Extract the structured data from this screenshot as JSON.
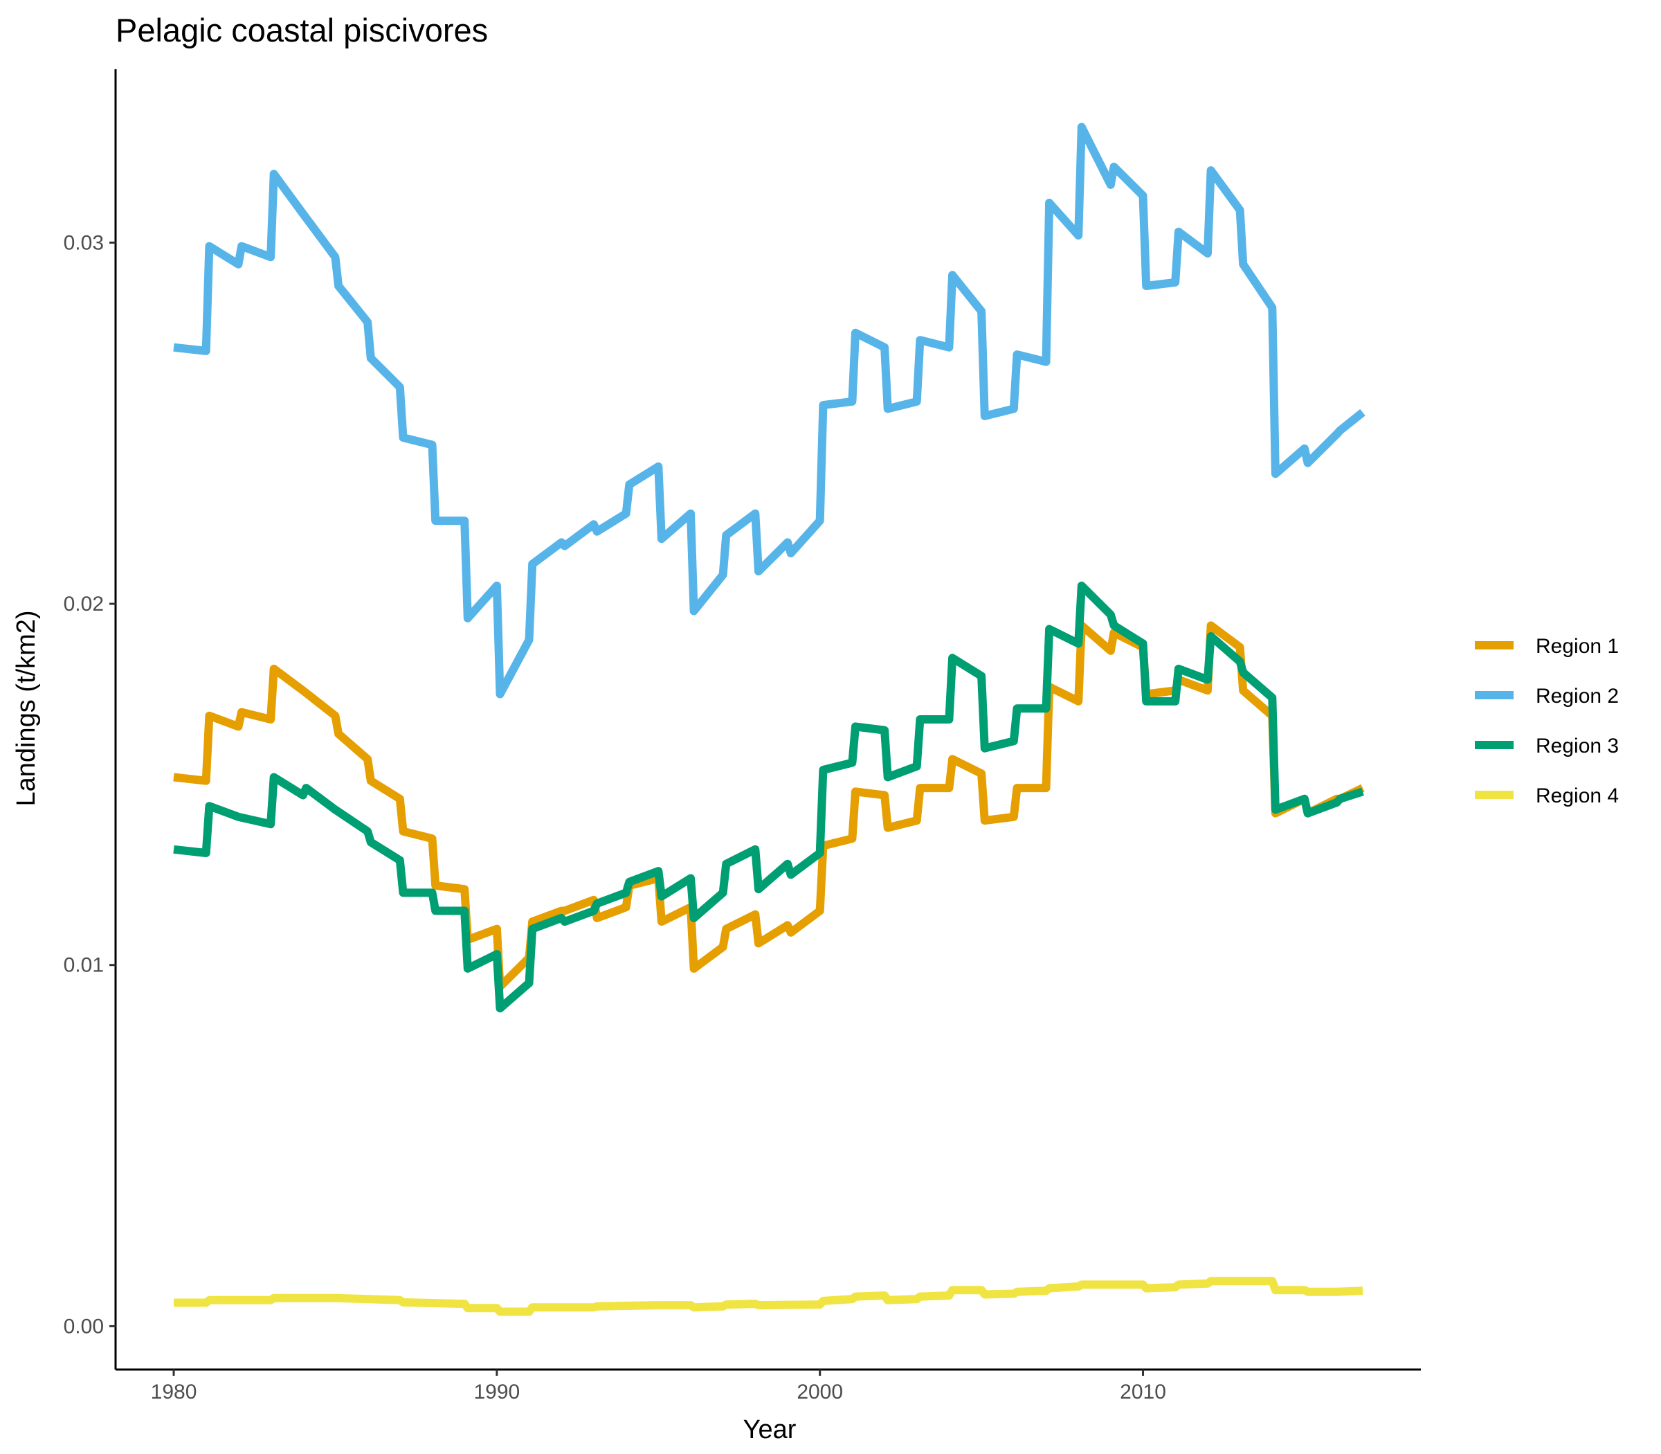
{
  "chart_data": {
    "type": "line",
    "title": "Pelagic coastal piscivores",
    "xlabel": "Year",
    "ylabel": "Landings (t/km2)",
    "xlim": [
      1978.2,
      2018.6
    ],
    "ylim": [
      -0.0012,
      0.0348
    ],
    "x_ticks": [
      1980,
      1990,
      2000,
      2010
    ],
    "y_ticks": [
      0.0,
      0.01,
      0.02,
      0.03
    ],
    "x_tick_labels": [
      "1980",
      "1990",
      "2000",
      "2010"
    ],
    "y_tick_labels": [
      "0.00",
      "0.01",
      "0.02",
      "0.03"
    ],
    "legend_position": "right",
    "grid": false,
    "series": [
      {
        "name": "Region 1",
        "color": "#E69F00",
        "points": [
          [
            1980.0,
            0.0152
          ],
          [
            1981.0,
            0.0151
          ],
          [
            1981.1,
            0.0169
          ],
          [
            1982.0,
            0.0166
          ],
          [
            1982.1,
            0.017
          ],
          [
            1983.0,
            0.0168
          ],
          [
            1983.1,
            0.0182
          ],
          [
            1984.0,
            0.0176
          ],
          [
            1985.0,
            0.0169
          ],
          [
            1985.1,
            0.0164
          ],
          [
            1986.0,
            0.0157
          ],
          [
            1986.1,
            0.0151
          ],
          [
            1987.0,
            0.0146
          ],
          [
            1987.1,
            0.0137
          ],
          [
            1988.0,
            0.0135
          ],
          [
            1988.1,
            0.0122
          ],
          [
            1989.0,
            0.0121
          ],
          [
            1989.1,
            0.0107
          ],
          [
            1990.0,
            0.011
          ],
          [
            1990.1,
            0.0094
          ],
          [
            1991.0,
            0.0102
          ],
          [
            1991.1,
            0.0112
          ],
          [
            1992.0,
            0.0115
          ],
          [
            1992.1,
            0.0115
          ],
          [
            1993.0,
            0.0118
          ],
          [
            1993.1,
            0.0113
          ],
          [
            1994.0,
            0.0116
          ],
          [
            1994.1,
            0.0122
          ],
          [
            1995.0,
            0.0124
          ],
          [
            1995.1,
            0.0112
          ],
          [
            1996.0,
            0.0116
          ],
          [
            1996.1,
            0.0099
          ],
          [
            1997.0,
            0.0105
          ],
          [
            1997.1,
            0.011
          ],
          [
            1998.0,
            0.0114
          ],
          [
            1998.1,
            0.0106
          ],
          [
            1999.0,
            0.0111
          ],
          [
            1999.1,
            0.0109
          ],
          [
            2000.0,
            0.0115
          ],
          [
            2000.1,
            0.0133
          ],
          [
            2001.0,
            0.0135
          ],
          [
            2001.1,
            0.0148
          ],
          [
            2002.0,
            0.0147
          ],
          [
            2002.1,
            0.0138
          ],
          [
            2003.0,
            0.014
          ],
          [
            2003.1,
            0.0149
          ],
          [
            2004.0,
            0.0149
          ],
          [
            2004.1,
            0.0157
          ],
          [
            2005.0,
            0.0153
          ],
          [
            2005.1,
            0.014
          ],
          [
            2006.0,
            0.0141
          ],
          [
            2006.1,
            0.0149
          ],
          [
            2007.0,
            0.0149
          ],
          [
            2007.1,
            0.0177
          ],
          [
            2008.0,
            0.0173
          ],
          [
            2008.1,
            0.0194
          ],
          [
            2009.0,
            0.0187
          ],
          [
            2009.1,
            0.0192
          ],
          [
            2010.0,
            0.0188
          ],
          [
            2010.1,
            0.0175
          ],
          [
            2011.0,
            0.0176
          ],
          [
            2011.1,
            0.0179
          ],
          [
            2012.0,
            0.0176
          ],
          [
            2012.1,
            0.0194
          ],
          [
            2013.0,
            0.0188
          ],
          [
            2013.1,
            0.0176
          ],
          [
            2014.0,
            0.0169
          ],
          [
            2014.1,
            0.0142
          ],
          [
            2015.0,
            0.0146
          ],
          [
            2015.1,
            0.0142
          ],
          [
            2016.0,
            0.0146
          ],
          [
            2016.1,
            0.0146
          ],
          [
            2016.8,
            0.0149
          ]
        ]
      },
      {
        "name": "Region 2",
        "color": "#56B4E9",
        "points": [
          [
            1980.0,
            0.0271
          ],
          [
            1981.0,
            0.027
          ],
          [
            1981.1,
            0.0299
          ],
          [
            1982.0,
            0.0294
          ],
          [
            1982.1,
            0.0299
          ],
          [
            1983.0,
            0.0296
          ],
          [
            1983.1,
            0.0319
          ],
          [
            1984.0,
            0.0308
          ],
          [
            1985.0,
            0.0296
          ],
          [
            1985.1,
            0.0288
          ],
          [
            1986.0,
            0.0278
          ],
          [
            1986.1,
            0.0268
          ],
          [
            1987.0,
            0.026
          ],
          [
            1987.1,
            0.0246
          ],
          [
            1988.0,
            0.0244
          ],
          [
            1988.1,
            0.0223
          ],
          [
            1989.0,
            0.0223
          ],
          [
            1989.1,
            0.0196
          ],
          [
            1990.0,
            0.0205
          ],
          [
            1990.1,
            0.0175
          ],
          [
            1991.0,
            0.019
          ],
          [
            1991.1,
            0.0211
          ],
          [
            1992.0,
            0.0217
          ],
          [
            1992.1,
            0.0216
          ],
          [
            1993.0,
            0.0222
          ],
          [
            1993.1,
            0.022
          ],
          [
            1994.0,
            0.0225
          ],
          [
            1994.1,
            0.0233
          ],
          [
            1995.0,
            0.0238
          ],
          [
            1995.1,
            0.0218
          ],
          [
            1996.0,
            0.0225
          ],
          [
            1996.1,
            0.0198
          ],
          [
            1997.0,
            0.0208
          ],
          [
            1997.1,
            0.0219
          ],
          [
            1998.0,
            0.0225
          ],
          [
            1998.1,
            0.0209
          ],
          [
            1999.0,
            0.0217
          ],
          [
            1999.1,
            0.0214
          ],
          [
            2000.0,
            0.0223
          ],
          [
            2000.1,
            0.0255
          ],
          [
            2001.0,
            0.0256
          ],
          [
            2001.1,
            0.0275
          ],
          [
            2002.0,
            0.0271
          ],
          [
            2002.1,
            0.0254
          ],
          [
            2003.0,
            0.0256
          ],
          [
            2003.1,
            0.0273
          ],
          [
            2004.0,
            0.0271
          ],
          [
            2004.1,
            0.0291
          ],
          [
            2005.0,
            0.0281
          ],
          [
            2005.1,
            0.0252
          ],
          [
            2006.0,
            0.0254
          ],
          [
            2006.1,
            0.0269
          ],
          [
            2007.0,
            0.0267
          ],
          [
            2007.1,
            0.0311
          ],
          [
            2008.0,
            0.0302
          ],
          [
            2008.1,
            0.0332
          ],
          [
            2009.0,
            0.0316
          ],
          [
            2009.1,
            0.0321
          ],
          [
            2010.0,
            0.0313
          ],
          [
            2010.1,
            0.0288
          ],
          [
            2011.0,
            0.0289
          ],
          [
            2011.1,
            0.0303
          ],
          [
            2012.0,
            0.0297
          ],
          [
            2012.1,
            0.032
          ],
          [
            2013.0,
            0.0309
          ],
          [
            2013.1,
            0.0294
          ],
          [
            2014.0,
            0.0282
          ],
          [
            2014.1,
            0.0236
          ],
          [
            2015.0,
            0.0243
          ],
          [
            2015.1,
            0.0239
          ],
          [
            2016.0,
            0.0247
          ],
          [
            2016.1,
            0.0248
          ],
          [
            2016.8,
            0.0253
          ]
        ]
      },
      {
        "name": "Region 3",
        "color": "#009E73",
        "points": [
          [
            1980.0,
            0.0132
          ],
          [
            1981.0,
            0.0131
          ],
          [
            1981.1,
            0.0144
          ],
          [
            1982.0,
            0.0141
          ],
          [
            1983.0,
            0.0139
          ],
          [
            1983.1,
            0.0152
          ],
          [
            1984.0,
            0.0147
          ],
          [
            1984.1,
            0.0149
          ],
          [
            1985.0,
            0.0143
          ],
          [
            1986.0,
            0.0137
          ],
          [
            1986.1,
            0.0134
          ],
          [
            1987.0,
            0.0129
          ],
          [
            1987.1,
            0.012
          ],
          [
            1988.0,
            0.012
          ],
          [
            1988.1,
            0.0115
          ],
          [
            1989.0,
            0.0115
          ],
          [
            1989.1,
            0.0099
          ],
          [
            1990.0,
            0.0103
          ],
          [
            1990.1,
            0.0088
          ],
          [
            1991.0,
            0.0095
          ],
          [
            1991.1,
            0.011
          ],
          [
            1992.0,
            0.0113
          ],
          [
            1992.1,
            0.0112
          ],
          [
            1993.0,
            0.0115
          ],
          [
            1993.1,
            0.0117
          ],
          [
            1994.0,
            0.012
          ],
          [
            1994.1,
            0.0123
          ],
          [
            1995.0,
            0.0126
          ],
          [
            1995.1,
            0.0119
          ],
          [
            1996.0,
            0.0124
          ],
          [
            1996.1,
            0.0113
          ],
          [
            1997.0,
            0.012
          ],
          [
            1997.1,
            0.0128
          ],
          [
            1998.0,
            0.0132
          ],
          [
            1998.1,
            0.0121
          ],
          [
            1999.0,
            0.0128
          ],
          [
            1999.1,
            0.0125
          ],
          [
            2000.0,
            0.0131
          ],
          [
            2000.1,
            0.0154
          ],
          [
            2001.0,
            0.0156
          ],
          [
            2001.1,
            0.0166
          ],
          [
            2002.0,
            0.0165
          ],
          [
            2002.1,
            0.0152
          ],
          [
            2003.0,
            0.0155
          ],
          [
            2003.1,
            0.0168
          ],
          [
            2004.0,
            0.0168
          ],
          [
            2004.1,
            0.0185
          ],
          [
            2005.0,
            0.018
          ],
          [
            2005.1,
            0.016
          ],
          [
            2006.0,
            0.0162
          ],
          [
            2006.1,
            0.0171
          ],
          [
            2007.0,
            0.0171
          ],
          [
            2007.1,
            0.0193
          ],
          [
            2008.0,
            0.0189
          ],
          [
            2008.1,
            0.0205
          ],
          [
            2009.0,
            0.0197
          ],
          [
            2009.1,
            0.0194
          ],
          [
            2010.0,
            0.0189
          ],
          [
            2010.1,
            0.0173
          ],
          [
            2011.0,
            0.0173
          ],
          [
            2011.1,
            0.0182
          ],
          [
            2012.0,
            0.0179
          ],
          [
            2012.1,
            0.0191
          ],
          [
            2013.0,
            0.0184
          ],
          [
            2013.1,
            0.0181
          ],
          [
            2014.0,
            0.0174
          ],
          [
            2014.1,
            0.0143
          ],
          [
            2015.0,
            0.0146
          ],
          [
            2015.1,
            0.0142
          ],
          [
            2016.0,
            0.0145
          ],
          [
            2016.1,
            0.0146
          ],
          [
            2016.8,
            0.0148
          ]
        ]
      },
      {
        "name": "Region 4",
        "color": "#F0E442",
        "points": [
          [
            1980.0,
            0.00065
          ],
          [
            1981.0,
            0.00065
          ],
          [
            1981.1,
            0.00072
          ],
          [
            1983.0,
            0.00072
          ],
          [
            1983.1,
            0.00078
          ],
          [
            1985.0,
            0.00078
          ],
          [
            1986.0,
            0.00075
          ],
          [
            1987.0,
            0.00072
          ],
          [
            1987.1,
            0.00066
          ],
          [
            1989.0,
            0.00062
          ],
          [
            1989.1,
            0.0005
          ],
          [
            1990.0,
            0.0005
          ],
          [
            1990.1,
            0.0004
          ],
          [
            1991.0,
            0.0004
          ],
          [
            1991.1,
            0.00052
          ],
          [
            1993.0,
            0.00052
          ],
          [
            1993.1,
            0.00055
          ],
          [
            1995.0,
            0.00058
          ],
          [
            1996.0,
            0.00058
          ],
          [
            1996.1,
            0.00052
          ],
          [
            1997.0,
            0.00055
          ],
          [
            1997.1,
            0.0006
          ],
          [
            1998.0,
            0.00062
          ],
          [
            1998.1,
            0.00058
          ],
          [
            2000.0,
            0.0006
          ],
          [
            2000.1,
            0.0007
          ],
          [
            2001.0,
            0.00075
          ],
          [
            2001.1,
            0.00082
          ],
          [
            2002.0,
            0.00085
          ],
          [
            2002.1,
            0.00072
          ],
          [
            2003.0,
            0.00075
          ],
          [
            2003.1,
            0.00082
          ],
          [
            2004.0,
            0.00085
          ],
          [
            2004.1,
            0.001
          ],
          [
            2005.0,
            0.001
          ],
          [
            2005.1,
            0.00088
          ],
          [
            2006.0,
            0.0009
          ],
          [
            2006.1,
            0.00095
          ],
          [
            2007.0,
            0.00098
          ],
          [
            2007.1,
            0.00105
          ],
          [
            2008.0,
            0.0011
          ],
          [
            2008.1,
            0.00115
          ],
          [
            2010.0,
            0.00115
          ],
          [
            2010.1,
            0.00105
          ],
          [
            2011.0,
            0.00108
          ],
          [
            2011.1,
            0.00115
          ],
          [
            2012.0,
            0.00118
          ],
          [
            2012.1,
            0.00125
          ],
          [
            2014.0,
            0.00125
          ],
          [
            2014.1,
            0.001
          ],
          [
            2015.0,
            0.001
          ],
          [
            2015.1,
            0.00095
          ],
          [
            2016.0,
            0.00095
          ],
          [
            2016.8,
            0.00098
          ]
        ]
      }
    ]
  }
}
